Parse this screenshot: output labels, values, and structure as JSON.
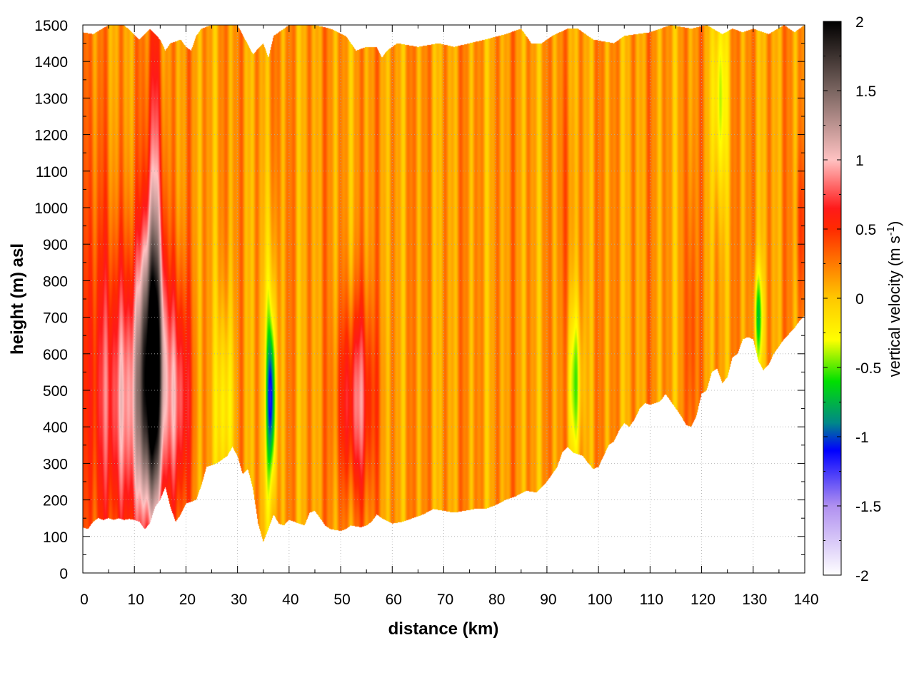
{
  "chart_data": {
    "type": "heatmap",
    "title": "",
    "xlabel": "distance (km)",
    "ylabel": "height (m) asl",
    "xlim": [
      0,
      140
    ],
    "ylim": [
      0,
      1500
    ],
    "x_ticks": [
      "0",
      "10",
      "20",
      "30",
      "40",
      "50",
      "60",
      "70",
      "80",
      "90",
      "100",
      "110",
      "120",
      "130",
      "140"
    ],
    "y_ticks": [
      "0",
      "100",
      "200",
      "300",
      "400",
      "500",
      "600",
      "700",
      "800",
      "900",
      "1000",
      "1100",
      "1200",
      "1300",
      "1400",
      "1500"
    ],
    "grid": true,
    "colorbar": {
      "label_prefix": "vertical velocity (m s",
      "label_exponent": "-1",
      "label_suffix": ")",
      "range": [
        -2,
        2
      ],
      "ticks": [
        "2",
        "1.5",
        "1",
        "0.5",
        "0",
        "-0.5",
        "-1",
        "-1.5",
        "-2"
      ],
      "stops": [
        {
          "value": 2.0,
          "color": "#000000"
        },
        {
          "value": 1.5,
          "color": "#7a6560"
        },
        {
          "value": 1.0,
          "color": "#ffc2c2"
        },
        {
          "value": 0.65,
          "color": "#ff1a1a"
        },
        {
          "value": 0.5,
          "color": "#ff2a00"
        },
        {
          "value": 0.25,
          "color": "#ff7a00"
        },
        {
          "value": 0.0,
          "color": "#ffc800"
        },
        {
          "value": -0.3,
          "color": "#ffff00"
        },
        {
          "value": -0.6,
          "color": "#00e000"
        },
        {
          "value": -0.9,
          "color": "#008888"
        },
        {
          "value": -1.1,
          "color": "#0000ff"
        },
        {
          "value": -1.5,
          "color": "#b090f0"
        },
        {
          "value": -2.0,
          "color": "#ffffff"
        }
      ]
    },
    "background_value": 0.15,
    "features": [
      {
        "name": "updraft",
        "x": 13.5,
        "y": 550,
        "sx": 1.6,
        "sy": 260,
        "value": 1.85
      },
      {
        "name": "updraft",
        "x": 9.5,
        "y": 470,
        "sx": 4.5,
        "sy": 280,
        "value": 0.95
      },
      {
        "name": "updraft",
        "x": 14,
        "y": 1050,
        "sx": 1.2,
        "sy": 380,
        "value": 0.75
      },
      {
        "name": "updraft",
        "x": 18.5,
        "y": 480,
        "sx": 1.6,
        "sy": 220,
        "value": 0.75
      },
      {
        "name": "updraft",
        "x": 3,
        "y": 650,
        "sx": 3,
        "sy": 500,
        "value": 0.35
      },
      {
        "name": "updraft",
        "x": 53,
        "y": 470,
        "sx": 2.3,
        "sy": 190,
        "value": 0.85
      },
      {
        "name": "updraft",
        "x": 118,
        "y": 650,
        "sx": 0.6,
        "sy": 300,
        "value": 0.45
      },
      {
        "name": "updraft",
        "x": 139.5,
        "y": 950,
        "sx": 0.8,
        "sy": 150,
        "value": 0.4
      },
      {
        "name": "updraft",
        "x": 94,
        "y": 1000,
        "sx": 1.0,
        "sy": 250,
        "value": 0.25
      },
      {
        "name": "updraft",
        "x": 40,
        "y": 800,
        "sx": 1.2,
        "sy": 500,
        "value": 0.2
      },
      {
        "name": "downdraft",
        "x": 36.5,
        "y": 480,
        "sx": 0.55,
        "sy": 130,
        "value": -0.75
      },
      {
        "name": "downdraft",
        "x": 36.5,
        "y": 500,
        "sx": 0.9,
        "sy": 300,
        "value": -0.35
      },
      {
        "name": "downdraft",
        "x": 131,
        "y": 700,
        "sx": 0.6,
        "sy": 90,
        "value": -0.55
      },
      {
        "name": "downdraft",
        "x": 95.5,
        "y": 520,
        "sx": 0.9,
        "sy": 150,
        "value": -0.4
      },
      {
        "name": "downdraft",
        "x": 123.5,
        "y": 1300,
        "sx": 1.0,
        "sy": 200,
        "value": -0.35
      },
      {
        "name": "downdraft",
        "x": 27.5,
        "y": 450,
        "sx": 1.2,
        "sy": 200,
        "value": -0.3
      }
    ],
    "terrain": [
      {
        "x": 0,
        "y": 125
      },
      {
        "x": 1,
        "y": 120
      },
      {
        "x": 2,
        "y": 140
      },
      {
        "x": 3,
        "y": 150
      },
      {
        "x": 4,
        "y": 145
      },
      {
        "x": 5,
        "y": 150
      },
      {
        "x": 6,
        "y": 145
      },
      {
        "x": 7,
        "y": 150
      },
      {
        "x": 8,
        "y": 145
      },
      {
        "x": 9,
        "y": 148
      },
      {
        "x": 10,
        "y": 145
      },
      {
        "x": 11,
        "y": 140
      },
      {
        "x": 12,
        "y": 120
      },
      {
        "x": 13,
        "y": 135
      },
      {
        "x": 14,
        "y": 180
      },
      {
        "x": 15,
        "y": 200
      },
      {
        "x": 16,
        "y": 235
      },
      {
        "x": 17,
        "y": 180
      },
      {
        "x": 18,
        "y": 140
      },
      {
        "x": 19,
        "y": 160
      },
      {
        "x": 20,
        "y": 190
      },
      {
        "x": 22,
        "y": 200
      },
      {
        "x": 23,
        "y": 240
      },
      {
        "x": 24,
        "y": 290
      },
      {
        "x": 26,
        "y": 300
      },
      {
        "x": 28,
        "y": 320
      },
      {
        "x": 29,
        "y": 345
      },
      {
        "x": 30,
        "y": 320
      },
      {
        "x": 31,
        "y": 270
      },
      {
        "x": 32,
        "y": 285
      },
      {
        "x": 33,
        "y": 230
      },
      {
        "x": 34,
        "y": 135
      },
      {
        "x": 35,
        "y": 85
      },
      {
        "x": 36,
        "y": 120
      },
      {
        "x": 37,
        "y": 160
      },
      {
        "x": 38,
        "y": 135
      },
      {
        "x": 39,
        "y": 130
      },
      {
        "x": 40,
        "y": 145
      },
      {
        "x": 41,
        "y": 140
      },
      {
        "x": 42,
        "y": 135
      },
      {
        "x": 43,
        "y": 130
      },
      {
        "x": 44,
        "y": 165
      },
      {
        "x": 45,
        "y": 170
      },
      {
        "x": 46,
        "y": 150
      },
      {
        "x": 47,
        "y": 130
      },
      {
        "x": 48,
        "y": 120
      },
      {
        "x": 50,
        "y": 115
      },
      {
        "x": 51,
        "y": 120
      },
      {
        "x": 52,
        "y": 130
      },
      {
        "x": 54,
        "y": 125
      },
      {
        "x": 55,
        "y": 130
      },
      {
        "x": 56,
        "y": 140
      },
      {
        "x": 57,
        "y": 160
      },
      {
        "x": 58,
        "y": 150
      },
      {
        "x": 60,
        "y": 135
      },
      {
        "x": 62,
        "y": 140
      },
      {
        "x": 64,
        "y": 150
      },
      {
        "x": 66,
        "y": 160
      },
      {
        "x": 68,
        "y": 175
      },
      {
        "x": 70,
        "y": 170
      },
      {
        "x": 72,
        "y": 165
      },
      {
        "x": 74,
        "y": 170
      },
      {
        "x": 76,
        "y": 175
      },
      {
        "x": 78,
        "y": 175
      },
      {
        "x": 80,
        "y": 185
      },
      {
        "x": 82,
        "y": 200
      },
      {
        "x": 84,
        "y": 210
      },
      {
        "x": 86,
        "y": 225
      },
      {
        "x": 88,
        "y": 220
      },
      {
        "x": 90,
        "y": 250
      },
      {
        "x": 92,
        "y": 290
      },
      {
        "x": 93,
        "y": 330
      },
      {
        "x": 94,
        "y": 345
      },
      {
        "x": 95,
        "y": 330
      },
      {
        "x": 96,
        "y": 325
      },
      {
        "x": 97,
        "y": 320
      },
      {
        "x": 98,
        "y": 300
      },
      {
        "x": 99,
        "y": 285
      },
      {
        "x": 100,
        "y": 290
      },
      {
        "x": 101,
        "y": 320
      },
      {
        "x": 102,
        "y": 350
      },
      {
        "x": 103,
        "y": 360
      },
      {
        "x": 104,
        "y": 390
      },
      {
        "x": 105,
        "y": 410
      },
      {
        "x": 106,
        "y": 400
      },
      {
        "x": 107,
        "y": 420
      },
      {
        "x": 108,
        "y": 450
      },
      {
        "x": 109,
        "y": 465
      },
      {
        "x": 110,
        "y": 460
      },
      {
        "x": 111,
        "y": 465
      },
      {
        "x": 112,
        "y": 470
      },
      {
        "x": 113,
        "y": 490
      },
      {
        "x": 114,
        "y": 470
      },
      {
        "x": 115,
        "y": 450
      },
      {
        "x": 116,
        "y": 430
      },
      {
        "x": 117,
        "y": 405
      },
      {
        "x": 118,
        "y": 400
      },
      {
        "x": 119,
        "y": 430
      },
      {
        "x": 120,
        "y": 490
      },
      {
        "x": 121,
        "y": 500
      },
      {
        "x": 122,
        "y": 550
      },
      {
        "x": 123,
        "y": 560
      },
      {
        "x": 124,
        "y": 520
      },
      {
        "x": 125,
        "y": 535
      },
      {
        "x": 126,
        "y": 590
      },
      {
        "x": 127,
        "y": 600
      },
      {
        "x": 128,
        "y": 640
      },
      {
        "x": 129,
        "y": 645
      },
      {
        "x": 130,
        "y": 640
      },
      {
        "x": 131,
        "y": 580
      },
      {
        "x": 132,
        "y": 555
      },
      {
        "x": 133,
        "y": 570
      },
      {
        "x": 134,
        "y": 600
      },
      {
        "x": 135,
        "y": 620
      },
      {
        "x": 136,
        "y": 640
      },
      {
        "x": 137,
        "y": 655
      },
      {
        "x": 138,
        "y": 670
      },
      {
        "x": 139,
        "y": 690
      },
      {
        "x": 140,
        "y": 705
      }
    ],
    "top_edge": [
      {
        "x": 0,
        "y": 1480
      },
      {
        "x": 2,
        "y": 1475
      },
      {
        "x": 5,
        "y": 1500
      },
      {
        "x": 8,
        "y": 1500
      },
      {
        "x": 11,
        "y": 1460
      },
      {
        "x": 13,
        "y": 1490
      },
      {
        "x": 15,
        "y": 1460
      },
      {
        "x": 16,
        "y": 1430
      },
      {
        "x": 17,
        "y": 1450
      },
      {
        "x": 19,
        "y": 1460
      },
      {
        "x": 20,
        "y": 1440
      },
      {
        "x": 21,
        "y": 1430
      },
      {
        "x": 22,
        "y": 1470
      },
      {
        "x": 23,
        "y": 1490
      },
      {
        "x": 25,
        "y": 1500
      },
      {
        "x": 30,
        "y": 1500
      },
      {
        "x": 33,
        "y": 1420
      },
      {
        "x": 35,
        "y": 1450
      },
      {
        "x": 36,
        "y": 1410
      },
      {
        "x": 37,
        "y": 1470
      },
      {
        "x": 40,
        "y": 1500
      },
      {
        "x": 45,
        "y": 1500
      },
      {
        "x": 48,
        "y": 1490
      },
      {
        "x": 51,
        "y": 1470
      },
      {
        "x": 53,
        "y": 1430
      },
      {
        "x": 55,
        "y": 1440
      },
      {
        "x": 57,
        "y": 1440
      },
      {
        "x": 58,
        "y": 1410
      },
      {
        "x": 59,
        "y": 1430
      },
      {
        "x": 61,
        "y": 1450
      },
      {
        "x": 65,
        "y": 1440
      },
      {
        "x": 69,
        "y": 1450
      },
      {
        "x": 72,
        "y": 1440
      },
      {
        "x": 75,
        "y": 1450
      },
      {
        "x": 78,
        "y": 1460
      },
      {
        "x": 82,
        "y": 1475
      },
      {
        "x": 85,
        "y": 1490
      },
      {
        "x": 87,
        "y": 1450
      },
      {
        "x": 89,
        "y": 1450
      },
      {
        "x": 91,
        "y": 1470
      },
      {
        "x": 94,
        "y": 1490
      },
      {
        "x": 96,
        "y": 1490
      },
      {
        "x": 99,
        "y": 1460
      },
      {
        "x": 103,
        "y": 1450
      },
      {
        "x": 105,
        "y": 1470
      },
      {
        "x": 110,
        "y": 1480
      },
      {
        "x": 114,
        "y": 1500
      },
      {
        "x": 118,
        "y": 1490
      },
      {
        "x": 121,
        "y": 1500
      },
      {
        "x": 124,
        "y": 1475
      },
      {
        "x": 126,
        "y": 1490
      },
      {
        "x": 128,
        "y": 1480
      },
      {
        "x": 130,
        "y": 1490
      },
      {
        "x": 133,
        "y": 1475
      },
      {
        "x": 136,
        "y": 1500
      },
      {
        "x": 138,
        "y": 1480
      },
      {
        "x": 140,
        "y": 1500
      }
    ]
  }
}
